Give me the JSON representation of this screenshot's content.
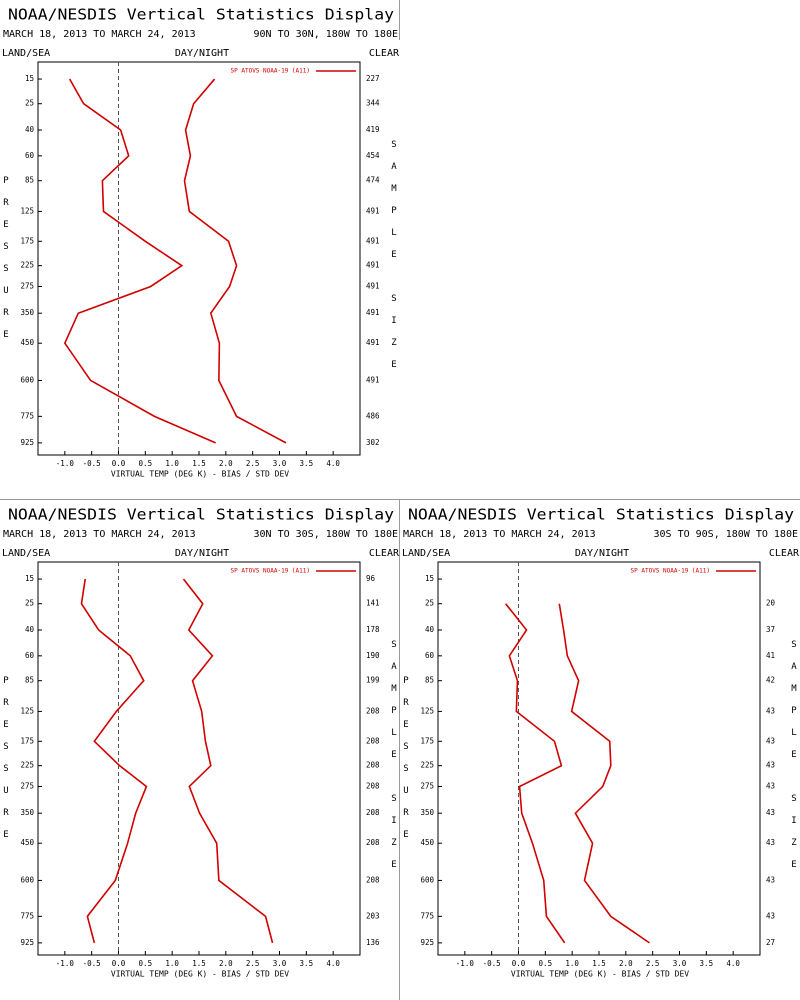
{
  "chart_data": [
    {
      "type": "line",
      "title": "NOAA/NESDIS Vertical Statistics Display",
      "subtitle": "MARCH 18, 2013 TO MARCH 24, 2013",
      "region": "90N TO 30N, 180W TO 180E",
      "left_header": "LAND/SEA",
      "center_header": "DAY/NIGHT",
      "right_header": "CLEAR",
      "y_label": "PRESSURE",
      "y2_label": "SAMPLE SIZE",
      "x_label": "VIRTUAL TEMP (DEG K) - BIAS / STD DEV",
      "y": [
        15,
        25,
        40,
        60,
        85,
        125,
        175,
        225,
        275,
        350,
        450,
        600,
        775,
        925
      ],
      "ylim": [
        10,
        1000
      ],
      "sample_size": [
        227,
        344,
        419,
        454,
        474,
        491,
        491,
        491,
        491,
        491,
        491,
        491,
        486,
        302
      ],
      "xlim": [
        -1.5,
        4.5
      ],
      "xticks": [
        {
          "value": -1,
          "label": "-1.0"
        },
        -0.5,
        {
          "value": 0,
          "label": "0.0"
        },
        0.5,
        {
          "value": 1,
          "label": "1.0"
        },
        1.5,
        {
          "value": 2,
          "label": "2.0"
        },
        2.5,
        {
          "value": 3,
          "label": "3.0"
        },
        3.5,
        {
          "value": 4,
          "label": "4.0"
        }
      ],
      "series": [
        {
          "name": "SP ATOVS NOAA-19 (A11)",
          "color": "#d00000",
          "values": [
            -0.91,
            -0.65,
            0.04,
            0.19,
            -0.3,
            -0.28,
            0.5,
            1.18,
            0.6,
            -0.75,
            -1.0,
            -0.52,
            0.67,
            1.81
          ]
        },
        {
          "color": "#d00000",
          "values": [
            1.79,
            1.4,
            1.25,
            1.34,
            1.23,
            1.32,
            2.05,
            2.2,
            2.07,
            1.72,
            1.88,
            1.87,
            2.2,
            3.12
          ]
        }
      ]
    },
    {
      "type": "line",
      "title": "NOAA/NESDIS Vertical Statistics Display",
      "subtitle": "MARCH 18, 2013 TO MARCH 24, 2013",
      "region": "30N TO 30S, 180W TO 180E",
      "left_header": "LAND/SEA",
      "center_header": "DAY/NIGHT",
      "right_header": "CLEAR",
      "y_label": "PRESSURE",
      "y2_label": "SAMPLE SIZE",
      "x_label": "VIRTUAL TEMP (DEG K) - BIAS / STD DEV",
      "y": [
        15,
        25,
        40,
        60,
        85,
        125,
        175,
        225,
        275,
        350,
        450,
        600,
        775,
        925
      ],
      "ylim": [
        10,
        1000
      ],
      "sample_size": [
        96,
        141,
        178,
        190,
        199,
        208,
        208,
        208,
        208,
        208,
        208,
        208,
        203,
        136
      ],
      "xlim": [
        -1.5,
        4.5
      ],
      "xticks": [
        {
          "value": -1,
          "label": "-1.0"
        },
        -0.5,
        {
          "value": 0,
          "label": "0.0"
        },
        0.5,
        {
          "value": 1,
          "label": "1.0"
        },
        1.5,
        {
          "value": 2,
          "label": "2.0"
        },
        2.5,
        {
          "value": 3,
          "label": "3.0"
        },
        3.5,
        {
          "value": 4,
          "label": "4.0"
        }
      ],
      "series": [
        {
          "name": "SP ATOVS NOAA-19 (A11)",
          "color": "#d00000",
          "values": [
            -0.62,
            -0.69,
            -0.37,
            0.22,
            0.47,
            -0.04,
            -0.45,
            0.02,
            0.52,
            0.32,
            0.17,
            -0.06,
            -0.58,
            -0.45
          ]
        },
        {
          "color": "#d00000",
          "values": [
            1.21,
            1.57,
            1.31,
            1.75,
            1.38,
            1.55,
            1.62,
            1.72,
            1.32,
            1.51,
            1.83,
            1.87,
            2.74,
            2.87
          ]
        }
      ]
    },
    {
      "type": "line",
      "title": "NOAA/NESDIS Vertical Statistics Display",
      "subtitle": "MARCH 18, 2013 TO MARCH 24, 2013",
      "region": "30S TO 90S, 180W TO 180E",
      "left_header": "LAND/SEA",
      "center_header": "DAY/NIGHT",
      "right_header": "CLEAR",
      "y_label": "PRESSURE",
      "y2_label": "SAMPLE SIZE",
      "x_label": "VIRTUAL TEMP (DEG K) - BIAS / STD DEV",
      "y": [
        15,
        25,
        40,
        60,
        85,
        125,
        175,
        225,
        275,
        350,
        450,
        600,
        775,
        925
      ],
      "ylim": [
        10,
        1000
      ],
      "sample_size": [
        null,
        20,
        37,
        41,
        42,
        43,
        43,
        43,
        43,
        43,
        43,
        43,
        43,
        27
      ],
      "xlim": [
        -1.5,
        4.5
      ],
      "xticks": [
        {
          "value": -1,
          "label": "-1.0"
        },
        -0.5,
        {
          "value": 0,
          "label": "0.0"
        },
        0.5,
        {
          "value": 1,
          "label": "1.0"
        },
        1.5,
        {
          "value": 2,
          "label": "2.0"
        },
        2.5,
        {
          "value": 3,
          "label": "3.0"
        },
        3.5,
        {
          "value": 4,
          "label": "4.0"
        }
      ],
      "series": [
        {
          "name": "SP ATOVS NOAA-19 (A11)",
          "color": "#d00000",
          "values": [
            null,
            -0.24,
            0.15,
            -0.17,
            -0.02,
            -0.04,
            0.67,
            0.8,
            0.02,
            0.06,
            0.26,
            0.47,
            0.52,
            0.86
          ]
        },
        {
          "color": "#d00000",
          "values": [
            null,
            0.76,
            0.84,
            0.91,
            1.12,
            0.99,
            1.7,
            1.72,
            1.57,
            1.06,
            1.38,
            1.23,
            1.72,
            2.44
          ]
        }
      ]
    }
  ]
}
